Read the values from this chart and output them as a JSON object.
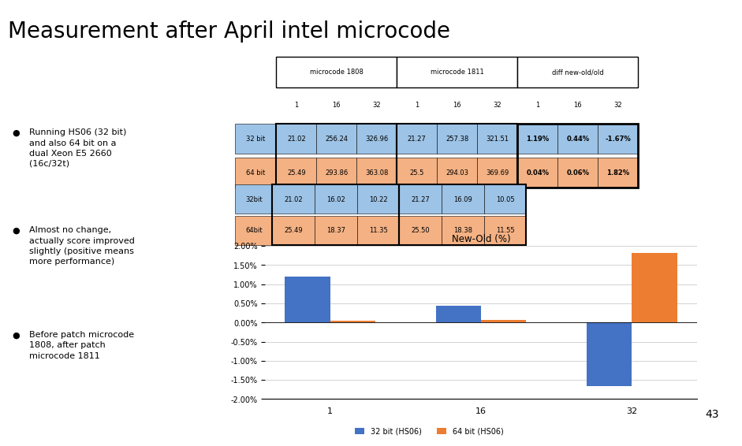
{
  "title": "Measurement after April intel microcode",
  "slide_number": "43",
  "bullet_points": [
    "Running HS06 (32 bit)\nand also 64 bit on a\ndual Xeon E5 2660\n(16c/32t)",
    "Almost no change,\nactually score improved\nslightly (positive means\nmore performance)",
    "Before patch microcode\n1808, after patch\nmicrocode 1811"
  ],
  "table1_rows": [
    [
      "32 bit",
      "21.02",
      "256.24",
      "326.96",
      "21.27",
      "257.38",
      "321.51",
      "1.19%",
      "0.44%",
      "-1.67%"
    ],
    [
      "64 bit",
      "25.49",
      "293.86",
      "363.08",
      "25.5",
      "294.03",
      "369.69",
      "0.04%",
      "0.06%",
      "1.82%"
    ]
  ],
  "table2_rows": [
    [
      "32bit",
      "21.02",
      "16.02",
      "10.22",
      "21.27",
      "16.09",
      "10.05"
    ],
    [
      "64bit",
      "25.49",
      "18.37",
      "11.35",
      "25.50",
      "18.38",
      "11.55"
    ]
  ],
  "chart_title": "New-Old (%)",
  "categories": [
    "1",
    "16",
    "32"
  ],
  "series_32bit": [
    1.19,
    0.44,
    -1.67
  ],
  "series_64bit": [
    0.04,
    0.06,
    1.82
  ],
  "color_32bit": "#4472C4",
  "color_64bit": "#ED7D31",
  "color_row1": "#9DC3E6",
  "color_row2": "#F4B183",
  "ylim": [
    -2.0,
    2.0
  ],
  "yticks": [
    -2.0,
    -1.5,
    -1.0,
    -0.5,
    0.0,
    0.5,
    1.0,
    1.5,
    2.0
  ],
  "legend_labels": [
    "32 bit (HS06)",
    "64 bit (HS06)"
  ],
  "background_color": "#FFFFFF",
  "title_fontsize": 20,
  "text_color": "#000000"
}
